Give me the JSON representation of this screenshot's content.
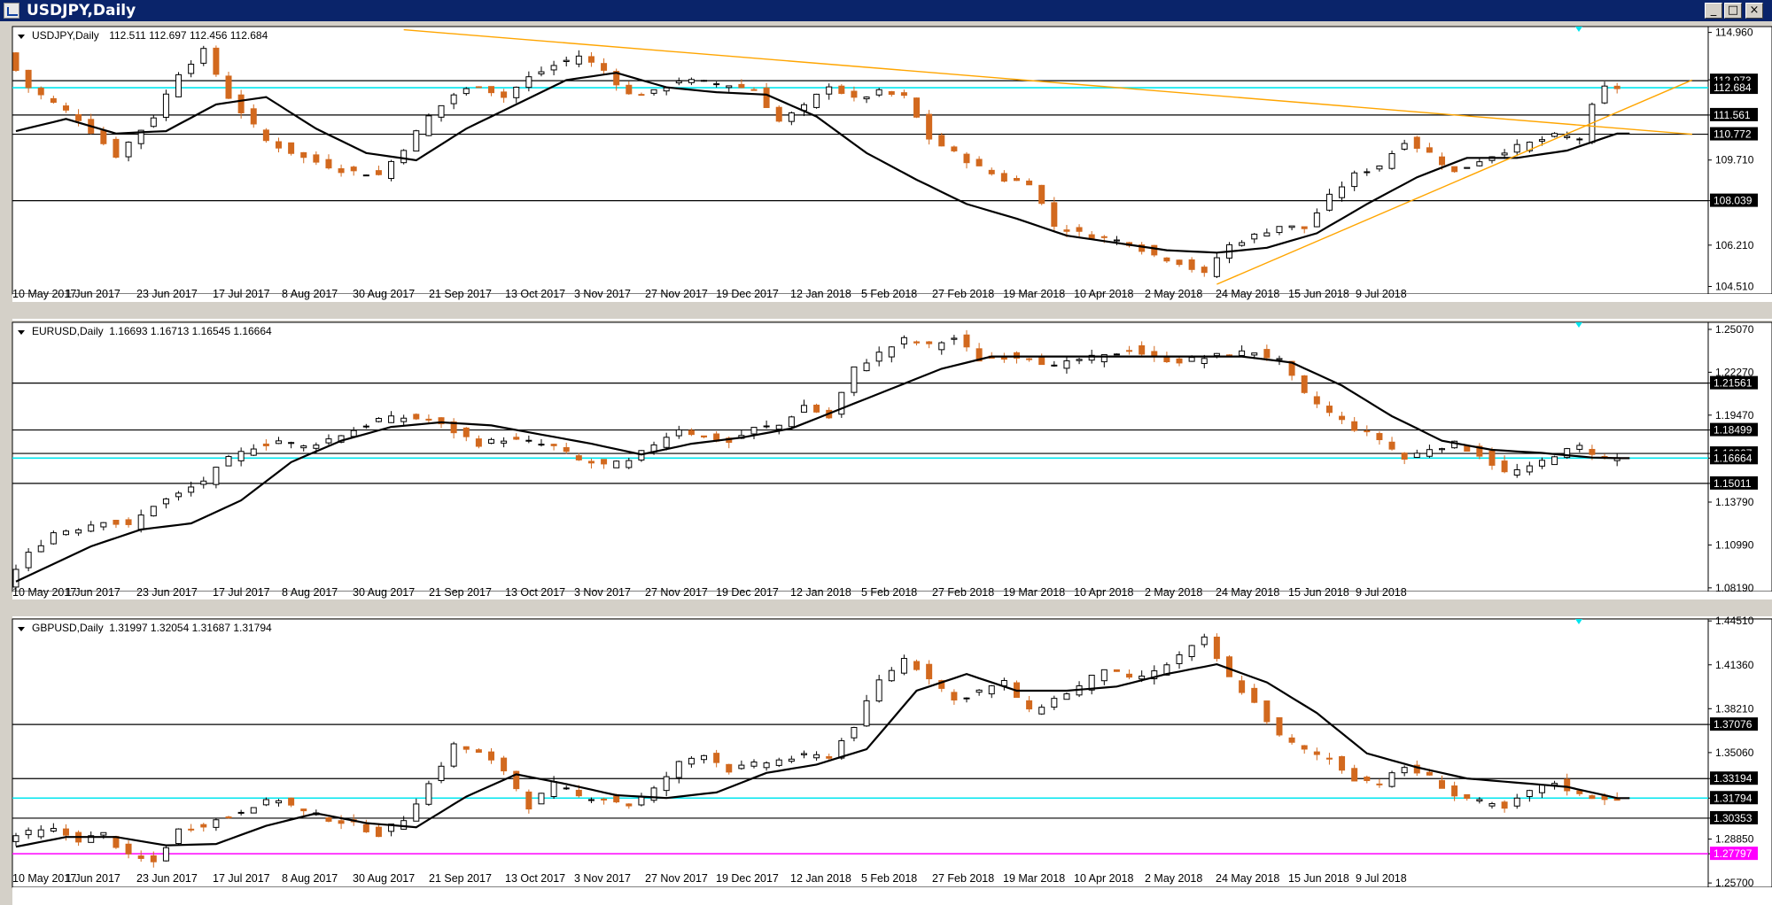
{
  "window": {
    "title": "USDJPY,Daily",
    "controls": [
      "minimize-icon",
      "maximize-icon",
      "close-icon"
    ]
  },
  "colors": {
    "bull_candle": "#000000",
    "bear_candle": "#d2691e",
    "moving_average": "#000000",
    "trendline": "#ffa500",
    "cyan_level": "#00e5ee",
    "magenta_level": "#ff00ff",
    "price_tag_bg": "#000000"
  },
  "x_axis_labels": [
    "10 May 2017",
    "1 Jun 2017",
    "23 Jun 2017",
    "17 Jul 2017",
    "8 Aug 2017",
    "30 Aug 2017",
    "21 Sep 2017",
    "13 Oct 2017",
    "3 Nov 2017",
    "27 Nov 2017",
    "19 Dec 2017",
    "12 Jan 2018",
    "5 Feb 2018",
    "27 Feb 2018",
    "19 Mar 2018",
    "10 Apr 2018",
    "2 May 2018",
    "24 May 2018",
    "15 Jun 2018",
    "9 Jul 2018"
  ],
  "chart_data": [
    {
      "type": "candlestick",
      "symbol_header": "USDJPY,Daily",
      "ohlc_header": "112.511 112.697 112.456 112.684",
      "y_ticks": [
        "114.960",
        "113.010",
        "111.561",
        "109.710",
        "108.039",
        "106.210",
        "104.510"
      ],
      "ylim": [
        104.2,
        115.2
      ],
      "close_profile": [
        [
          0,
          114.1
        ],
        [
          2,
          112.7
        ],
        [
          6,
          111.4
        ],
        [
          9,
          109.9
        ],
        [
          12,
          111.5
        ],
        [
          14,
          113.3
        ],
        [
          16,
          114.2
        ],
        [
          18,
          112.3
        ],
        [
          21,
          110.5
        ],
        [
          24,
          109.8
        ],
        [
          27,
          109.3
        ],
        [
          30,
          109.1
        ],
        [
          32,
          110.2
        ],
        [
          34,
          111.5
        ],
        [
          36,
          112.4
        ],
        [
          38,
          112.8
        ],
        [
          40,
          112.3
        ],
        [
          42,
          113.1
        ],
        [
          44,
          113.6
        ],
        [
          46,
          114.0
        ],
        [
          48,
          113.4
        ],
        [
          50,
          112.4
        ],
        [
          52,
          112.5
        ],
        [
          54,
          113.0
        ],
        [
          56,
          112.9
        ],
        [
          58,
          112.8
        ],
        [
          60,
          112.6
        ],
        [
          62,
          111.3
        ],
        [
          64,
          111.9
        ],
        [
          66,
          112.8
        ],
        [
          68,
          112.2
        ],
        [
          70,
          112.5
        ],
        [
          72,
          112.3
        ],
        [
          74,
          110.6
        ],
        [
          76,
          110.0
        ],
        [
          78,
          109.4
        ],
        [
          80,
          108.9
        ],
        [
          82,
          108.8
        ],
        [
          84,
          107.0
        ],
        [
          86,
          106.7
        ],
        [
          88,
          106.5
        ],
        [
          90,
          106.3
        ],
        [
          92,
          105.8
        ],
        [
          94,
          105.5
        ],
        [
          96,
          105.0
        ],
        [
          97,
          105.7
        ],
        [
          98,
          106.2
        ],
        [
          100,
          106.6
        ],
        [
          102,
          107.0
        ],
        [
          104,
          106.9
        ],
        [
          106,
          108.2
        ],
        [
          108,
          109.1
        ],
        [
          110,
          109.5
        ],
        [
          112,
          110.5
        ],
        [
          114,
          110.0
        ],
        [
          116,
          109.2
        ],
        [
          118,
          109.7
        ],
        [
          120,
          110.1
        ],
        [
          122,
          110.4
        ],
        [
          124,
          110.7
        ],
        [
          126,
          110.6
        ],
        [
          127,
          111.9
        ],
        [
          128,
          112.68
        ]
      ],
      "ma_profile": [
        [
          0,
          110.9
        ],
        [
          4,
          111.4
        ],
        [
          8,
          110.8
        ],
        [
          12,
          110.9
        ],
        [
          16,
          112.0
        ],
        [
          20,
          112.3
        ],
        [
          24,
          111.0
        ],
        [
          28,
          110.0
        ],
        [
          32,
          109.7
        ],
        [
          36,
          111.0
        ],
        [
          40,
          112.0
        ],
        [
          44,
          113.0
        ],
        [
          48,
          113.3
        ],
        [
          52,
          112.7
        ],
        [
          56,
          112.5
        ],
        [
          60,
          112.4
        ],
        [
          64,
          111.5
        ],
        [
          68,
          110.0
        ],
        [
          72,
          108.9
        ],
        [
          76,
          107.9
        ],
        [
          80,
          107.3
        ],
        [
          84,
          106.6
        ],
        [
          88,
          106.3
        ],
        [
          92,
          106.0
        ],
        [
          96,
          105.9
        ],
        [
          100,
          106.1
        ],
        [
          104,
          106.7
        ],
        [
          108,
          107.9
        ],
        [
          112,
          109.0
        ],
        [
          116,
          109.8
        ],
        [
          120,
          109.8
        ],
        [
          124,
          110.1
        ],
        [
          128,
          110.8
        ]
      ],
      "horizontal_levels": [
        {
          "label": "112.973",
          "price": 112.973,
          "color": "#000000",
          "tagged": true
        },
        {
          "label": "112.684",
          "price": 112.684,
          "color": "#00e5ee",
          "tagged": true
        },
        {
          "label": "111.561",
          "price": 111.561,
          "color": "#000000",
          "tagged": true
        },
        {
          "label": "110.772",
          "price": 110.772,
          "color": "#000000",
          "tagged": true
        },
        {
          "label": "108.039",
          "price": 108.039,
          "color": "#000000",
          "tagged": true
        }
      ],
      "trendlines": [
        {
          "x_from": 31,
          "y_from": 115.07,
          "x_to": 134,
          "y_to": 110.77
        },
        {
          "x_from": 96,
          "y_from": 104.6,
          "x_to": 134,
          "y_to": 113.0
        }
      ]
    },
    {
      "type": "candlestick",
      "symbol_header": "EURUSD,Daily",
      "ohlc_header": "1.16693 1.16713 1.16545 1.16664",
      "y_ticks": [
        "1.25070",
        "1.22270",
        "1.21561",
        "1.19470",
        "1.18499",
        "1.16967",
        "1.16664",
        "1.15011",
        "1.13790",
        "1.10990",
        "1.08190"
      ],
      "ylim": [
        1.0795,
        1.2553
      ],
      "close_profile": [
        [
          0,
          1.0835
        ],
        [
          2,
          1.104
        ],
        [
          4,
          1.118
        ],
        [
          6,
          1.121
        ],
        [
          8,
          1.126
        ],
        [
          10,
          1.122
        ],
        [
          12,
          1.136
        ],
        [
          14,
          1.143
        ],
        [
          16,
          1.152
        ],
        [
          18,
          1.166
        ],
        [
          20,
          1.174
        ],
        [
          22,
          1.178
        ],
        [
          24,
          1.174
        ],
        [
          26,
          1.179
        ],
        [
          28,
          1.185
        ],
        [
          30,
          1.192
        ],
        [
          32,
          1.193
        ],
        [
          34,
          1.192
        ],
        [
          36,
          1.184
        ],
        [
          38,
          1.176
        ],
        [
          40,
          1.179
        ],
        [
          42,
          1.177
        ],
        [
          44,
          1.174
        ],
        [
          46,
          1.165
        ],
        [
          48,
          1.162
        ],
        [
          50,
          1.164
        ],
        [
          52,
          1.176
        ],
        [
          54,
          1.186
        ],
        [
          56,
          1.18
        ],
        [
          58,
          1.177
        ],
        [
          60,
          1.186
        ],
        [
          62,
          1.188
        ],
        [
          64,
          1.201
        ],
        [
          66,
          1.193
        ],
        [
          68,
          1.225
        ],
        [
          70,
          1.235
        ],
        [
          72,
          1.244
        ],
        [
          74,
          1.24
        ],
        [
          76,
          1.245
        ],
        [
          78,
          1.231
        ],
        [
          80,
          1.233
        ],
        [
          82,
          1.233
        ],
        [
          84,
          1.226
        ],
        [
          86,
          1.231
        ],
        [
          88,
          1.233
        ],
        [
          90,
          1.238
        ],
        [
          92,
          1.232
        ],
        [
          94,
          1.23
        ],
        [
          96,
          1.232
        ],
        [
          98,
          1.235
        ],
        [
          100,
          1.236
        ],
        [
          102,
          1.23
        ],
        [
          104,
          1.208
        ],
        [
          106,
          1.196
        ],
        [
          108,
          1.186
        ],
        [
          110,
          1.179
        ],
        [
          112,
          1.166
        ],
        [
          114,
          1.173
        ],
        [
          116,
          1.176
        ],
        [
          118,
          1.169
        ],
        [
          120,
          1.157
        ],
        [
          122,
          1.16
        ],
        [
          124,
          1.169
        ],
        [
          126,
          1.174
        ],
        [
          128,
          1.1666
        ]
      ],
      "ma_profile": [
        [
          0,
          1.086
        ],
        [
          6,
          1.109
        ],
        [
          10,
          1.12
        ],
        [
          14,
          1.124
        ],
        [
          18,
          1.139
        ],
        [
          22,
          1.164
        ],
        [
          26,
          1.178
        ],
        [
          30,
          1.187
        ],
        [
          34,
          1.19
        ],
        [
          38,
          1.188
        ],
        [
          42,
          1.182
        ],
        [
          46,
          1.176
        ],
        [
          50,
          1.169
        ],
        [
          54,
          1.176
        ],
        [
          58,
          1.18
        ],
        [
          62,
          1.186
        ],
        [
          66,
          1.199
        ],
        [
          70,
          1.212
        ],
        [
          74,
          1.225
        ],
        [
          78,
          1.233
        ],
        [
          82,
          1.233
        ],
        [
          86,
          1.233
        ],
        [
          90,
          1.233
        ],
        [
          94,
          1.233
        ],
        [
          98,
          1.233
        ],
        [
          102,
          1.229
        ],
        [
          106,
          1.214
        ],
        [
          110,
          1.194
        ],
        [
          114,
          1.178
        ],
        [
          118,
          1.172
        ],
        [
          122,
          1.17
        ],
        [
          126,
          1.167
        ],
        [
          128,
          1.1666
        ]
      ],
      "horizontal_levels": [
        {
          "label": "1.21561",
          "price": 1.21561,
          "color": "#000000",
          "tagged": true
        },
        {
          "label": "1.18499",
          "price": 1.18499,
          "color": "#000000",
          "tagged": true
        },
        {
          "label": "1.16967",
          "price": 1.16967,
          "color": "#000000",
          "tagged": true
        },
        {
          "label": "1.16664",
          "price": 1.16664,
          "color": "#00e5ee",
          "tagged": true
        },
        {
          "label": "1.15011",
          "price": 1.15011,
          "color": "#000000",
          "tagged": true
        }
      ],
      "trendlines": []
    },
    {
      "type": "candlestick",
      "symbol_header": "GBPUSD,Daily",
      "ohlc_header": "1.31997 1.32054 1.31687 1.31794",
      "y_ticks": [
        "1.44510",
        "1.41360",
        "1.38210",
        "1.37076",
        "1.35060",
        "1.33194",
        "1.31794",
        "1.30353",
        "1.28850",
        "1.27797",
        "1.25700"
      ],
      "ylim": [
        1.2539,
        1.4465
      ],
      "close_profile": [
        [
          0,
          1.289
        ],
        [
          2,
          1.293
        ],
        [
          4,
          1.295
        ],
        [
          6,
          1.288
        ],
        [
          8,
          1.292
        ],
        [
          10,
          1.276
        ],
        [
          12,
          1.272
        ],
        [
          14,
          1.295
        ],
        [
          16,
          1.299
        ],
        [
          18,
          1.305
        ],
        [
          20,
          1.313
        ],
        [
          22,
          1.317
        ],
        [
          24,
          1.308
        ],
        [
          26,
          1.303
        ],
        [
          28,
          1.299
        ],
        [
          30,
          1.292
        ],
        [
          32,
          1.303
        ],
        [
          34,
          1.328
        ],
        [
          36,
          1.356
        ],
        [
          38,
          1.35
        ],
        [
          40,
          1.338
        ],
        [
          42,
          1.312
        ],
        [
          44,
          1.328
        ],
        [
          46,
          1.319
        ],
        [
          48,
          1.318
        ],
        [
          50,
          1.313
        ],
        [
          52,
          1.324
        ],
        [
          54,
          1.343
        ],
        [
          56,
          1.35
        ],
        [
          58,
          1.338
        ],
        [
          60,
          1.342
        ],
        [
          62,
          1.345
        ],
        [
          64,
          1.348
        ],
        [
          66,
          1.348
        ],
        [
          68,
          1.37
        ],
        [
          70,
          1.402
        ],
        [
          72,
          1.418
        ],
        [
          74,
          1.405
        ],
        [
          76,
          1.388
        ],
        [
          78,
          1.395
        ],
        [
          80,
          1.401
        ],
        [
          82,
          1.38
        ],
        [
          84,
          1.389
        ],
        [
          86,
          1.398
        ],
        [
          88,
          1.411
        ],
        [
          90,
          1.403
        ],
        [
          92,
          1.408
        ],
        [
          94,
          1.42
        ],
        [
          96,
          1.432
        ],
        [
          98,
          1.404
        ],
        [
          100,
          1.386
        ],
        [
          102,
          1.362
        ],
        [
          104,
          1.352
        ],
        [
          106,
          1.346
        ],
        [
          108,
          1.332
        ],
        [
          110,
          1.329
        ],
        [
          112,
          1.34
        ],
        [
          114,
          1.333
        ],
        [
          116,
          1.32
        ],
        [
          118,
          1.315
        ],
        [
          120,
          1.31
        ],
        [
          122,
          1.323
        ],
        [
          124,
          1.329
        ],
        [
          126,
          1.32
        ],
        [
          128,
          1.3179
        ]
      ],
      "ma_profile": [
        [
          0,
          1.283
        ],
        [
          4,
          1.29
        ],
        [
          8,
          1.29
        ],
        [
          12,
          1.284
        ],
        [
          16,
          1.285
        ],
        [
          20,
          1.298
        ],
        [
          24,
          1.307
        ],
        [
          28,
          1.3
        ],
        [
          32,
          1.297
        ],
        [
          36,
          1.319
        ],
        [
          40,
          1.335
        ],
        [
          44,
          1.328
        ],
        [
          48,
          1.32
        ],
        [
          52,
          1.318
        ],
        [
          56,
          1.322
        ],
        [
          60,
          1.336
        ],
        [
          64,
          1.342
        ],
        [
          68,
          1.353
        ],
        [
          72,
          1.395
        ],
        [
          76,
          1.407
        ],
        [
          80,
          1.395
        ],
        [
          84,
          1.395
        ],
        [
          88,
          1.398
        ],
        [
          92,
          1.407
        ],
        [
          96,
          1.414
        ],
        [
          100,
          1.401
        ],
        [
          104,
          1.379
        ],
        [
          108,
          1.35
        ],
        [
          112,
          1.34
        ],
        [
          116,
          1.332
        ],
        [
          120,
          1.329
        ],
        [
          124,
          1.326
        ],
        [
          128,
          1.3179
        ]
      ],
      "horizontal_levels": [
        {
          "label": "1.37076",
          "price": 1.37076,
          "color": "#000000",
          "tagged": true
        },
        {
          "label": "1.33194",
          "price": 1.33194,
          "color": "#000000",
          "tagged": true
        },
        {
          "label": "1.31794",
          "price": 1.31794,
          "color": "#00e5ee",
          "tagged": true
        },
        {
          "label": "1.30353",
          "price": 1.30353,
          "color": "#000000",
          "tagged": true
        },
        {
          "label": "1.27797",
          "price": 1.27797,
          "color": "#ff00ff",
          "tagged": true
        }
      ],
      "trendlines": []
    }
  ]
}
